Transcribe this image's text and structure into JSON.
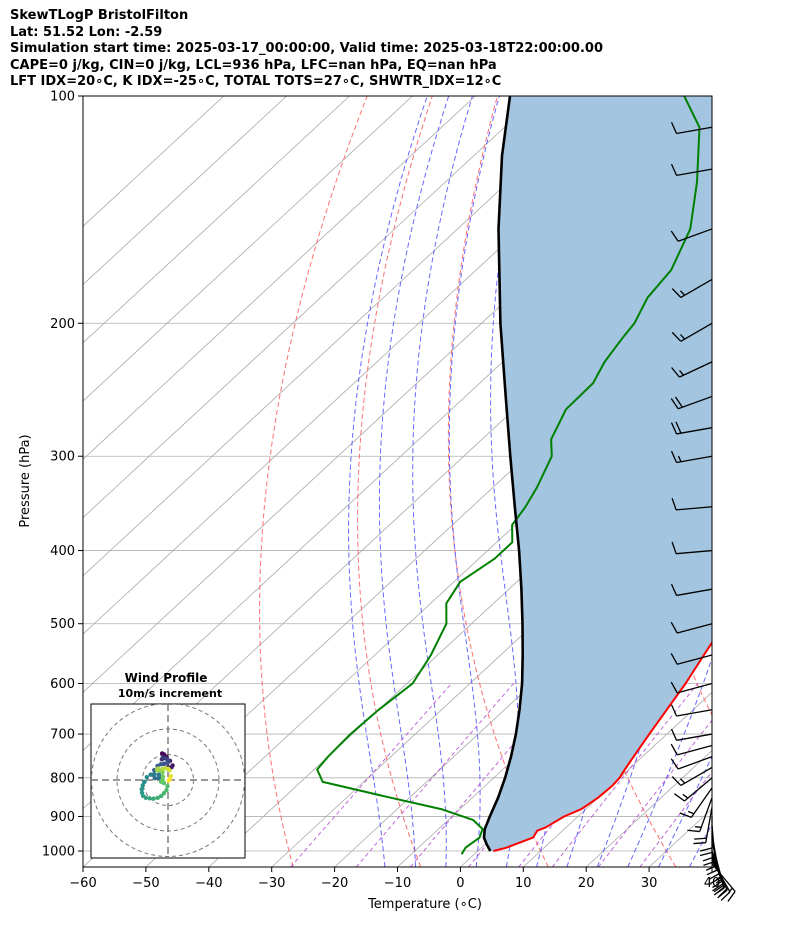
{
  "header": {
    "title": "SkewTLogP BristolFilton",
    "location": "Lat: 51.52   Lon: -2.59",
    "times": "Simulation start time: 2025-03-17_00:00:00, Valid time: 2025-03-18T22:00:00.00",
    "params": "CAPE=0 j/kg, CIN=0 j/kg, LCL=936 hPa, LFC=nan hPa, EQ=nan hPa",
    "indices": "LFT IDX=20∘C, K IDX=-25∘C, TOTAL TOTS=27∘C, SHWTR_IDX=12∘C"
  },
  "chart_data": [
    {
      "type": "line",
      "subtype": "skew-T log-P diagram",
      "xlabel": "Temperature (∘C)",
      "ylabel": "Pressure (hPa)",
      "xlim": [
        -60,
        40
      ],
      "ylim": [
        1050,
        100
      ],
      "y_scale": "log",
      "x_ticks": [
        -60,
        -50,
        -40,
        -30,
        -20,
        -10,
        0,
        10,
        20,
        30,
        40
      ],
      "x_tick_labels": [
        "−60",
        "−50",
        "−40",
        "−30",
        "−20",
        "−10",
        "0",
        "10",
        "20",
        "30",
        "40"
      ],
      "y_ticks": [
        100,
        200,
        300,
        400,
        500,
        600,
        700,
        800,
        900,
        1000
      ],
      "y_tick_labels": [
        "100",
        "200",
        "300",
        "400",
        "500",
        "600",
        "700",
        "800",
        "900",
        "1000"
      ],
      "grid": true,
      "colors": {
        "temperature": "#ff0000",
        "dewpoint": "#008000",
        "parcel": "#000000",
        "cape_fill": "#a3c5df",
        "dry_adiabats": "#ff6060",
        "moist_adiabats": "#4b4bff",
        "isotherms": "#aaaaaa",
        "mixing_ratio": "#b040d0"
      },
      "series": [
        {
          "key": "temperature",
          "pressure": [
            1000,
            990,
            960,
            940,
            930,
            900,
            880,
            850,
            820,
            800,
            780,
            750,
            700,
            650,
            600,
            550,
            500,
            450,
            420,
            400,
            380,
            360,
            340,
            320,
            300,
            280,
            260,
            240,
            225,
            210,
            200,
            185,
            170,
            160,
            150,
            140,
            130,
            120,
            110,
            100
          ],
          "values": [
            2.5,
            4,
            6.5,
            6,
            6.8,
            7.8,
            9.3,
            10.0,
            10.2,
            10.0,
            9.4,
            8.6,
            7.2,
            5.8,
            4.3,
            2.3,
            0.2,
            -2.4,
            -3.7,
            -4.8,
            -5.9,
            -7.3,
            -8.8,
            -10.0,
            -10.6,
            -11.2,
            -11.6,
            -11.6,
            -11.8,
            -12.4,
            -13.1,
            -14.1,
            -15.3,
            -16.2,
            -17.0,
            -18.6,
            -20.6,
            -23.0,
            -24.0,
            -24.4
          ]
        },
        {
          "key": "dewpoint",
          "pressure": [
            1010,
            990,
            960,
            935,
            910,
            880,
            850,
            810,
            780,
            750,
            700,
            650,
            600,
            550,
            500,
            470,
            440,
            410,
            390,
            370,
            350,
            330,
            300,
            285,
            260,
            240,
            225,
            210,
            200,
            185,
            170,
            150,
            130,
            110,
            100
          ],
          "values": [
            -2,
            -2.5,
            -2,
            -3,
            -6,
            -13,
            -23,
            -36.5,
            -39.5,
            -40,
            -40.3,
            -40,
            -39.1,
            -41.1,
            -44,
            -47.5,
            -49,
            -47.5,
            -47.5,
            -50.5,
            -51.5,
            -53,
            -56,
            -59,
            -61.8,
            -62,
            -63.8,
            -65,
            -65.7,
            -68,
            -69,
            -73,
            -80,
            -89,
            -96.8
          ]
        },
        {
          "key": "parcel",
          "pressure": [
            1000,
            980,
            960,
            936,
            900,
            850,
            800,
            750,
            700,
            650,
            600,
            550,
            500,
            450,
            400,
            350,
            300,
            250,
            200,
            150,
            120,
            100
          ],
          "values": [
            2.0,
            0.3,
            -1.3,
            -2.6,
            -4.0,
            -5.9,
            -8.2,
            -10.9,
            -14.0,
            -17.6,
            -21.7,
            -26.5,
            -31.9,
            -38.0,
            -45.0,
            -53.2,
            -62.6,
            -73.6,
            -87.0,
            -103.5,
            -115.5,
            -124.5
          ]
        }
      ],
      "wind_barbs": {
        "pressure": [
          1040,
          1030,
          1020,
          1010,
          1000,
          975,
          950,
          925,
          900,
          875,
          850,
          825,
          800,
          775,
          750,
          725,
          700,
          650,
          600,
          550,
          500,
          450,
          400,
          350,
          300,
          275,
          250,
          225,
          200,
          175,
          150,
          125,
          110
        ],
        "speed_kt": [
          17,
          19,
          22,
          24,
          25,
          24,
          23,
          21,
          20,
          19,
          17,
          15,
          15,
          14,
          12,
          11,
          10,
          10,
          10,
          10,
          10,
          10,
          10,
          10,
          15,
          20,
          20,
          15,
          15,
          15,
          10,
          10,
          10
        ],
        "direction_deg": [
          140,
          150,
          155,
          160,
          160,
          165,
          170,
          175,
          180,
          190,
          200,
          215,
          230,
          240,
          250,
          255,
          260,
          260,
          255,
          255,
          255,
          260,
          265,
          265,
          260,
          260,
          250,
          245,
          240,
          240,
          250,
          260,
          260
        ]
      }
    },
    {
      "type": "scatter",
      "subtype": "hodograph",
      "title": "Wind Profile",
      "subtitle": "10m/s increment",
      "rings_ms": [
        10,
        20,
        30
      ],
      "u_ms": [
        -2.3,
        -1.5,
        -0.5,
        0.8,
        1.8,
        1.4,
        0.0,
        -1.6,
        -2.4,
        -2.0,
        -1.0,
        -0.2,
        0.2,
        -0.1,
        -1.4,
        -2.8,
        -4.1,
        -5.4,
        -6.0,
        -5.2,
        -3.8,
        -2.4,
        -3.6,
        -5.3,
        -6.8,
        -8.3,
        -9.2,
        -9.9,
        -10.3,
        -10.2,
        -9.8,
        -8.7,
        -7.2,
        -5.6,
        -4.0,
        -2.7,
        -1.6,
        -0.6,
        -0.2,
        -1.6,
        -2.7,
        -2.1,
        -2.0,
        -2.1,
        -3.1,
        -4.0,
        -4.3,
        -3.8,
        -2.1,
        -0.9,
        0.1,
        0.6,
        1.1,
        0.7,
        0.3
      ],
      "v_ms": [
        10.4,
        10.0,
        9.1,
        7.5,
        5.7,
        5.0,
        5.1,
        6.3,
        8.1,
        8.8,
        8.5,
        7.9,
        7.3,
        6.8,
        6.4,
        6.2,
        5.5,
        3.9,
        2.1,
        0.7,
        0.7,
        1.2,
        2.1,
        2.3,
        2.1,
        1.1,
        -0.7,
        -2.1,
        -3.6,
        -5.0,
        -6.2,
        -7.0,
        -7.2,
        -7.3,
        -7.0,
        -6.3,
        -5.2,
        -4.0,
        -2.4,
        -1.2,
        -0.7,
        0.1,
        1.3,
        3.0,
        3.6,
        3.8,
        4.1,
        4.5,
        4.4,
        4.6,
        4.4,
        3.8,
        1.5,
        0.4,
        -0.2
      ],
      "colormap": [
        "#440154",
        "#3b528b",
        "#21918c",
        "#5ec962",
        "#fde725"
      ]
    }
  ]
}
